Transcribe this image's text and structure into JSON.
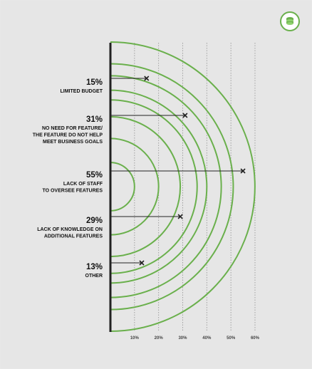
{
  "brand": {
    "logo_icon": "coins-stack-icon",
    "accent": "#6ab04c"
  },
  "chart_data": {
    "type": "radial-bar",
    "xlim": [
      0,
      60
    ],
    "ticks": [
      10,
      20,
      30,
      40,
      50,
      60
    ],
    "tick_labels": [
      "10%",
      "20%",
      "30%",
      "40%",
      "50%",
      "60%"
    ],
    "grid": true,
    "categories": [
      {
        "pct_label": "15%",
        "label": [
          "LIMITED BUDGET"
        ],
        "value": 15
      },
      {
        "pct_label": "31%",
        "label": [
          "NO NEED FOR FEATURE/",
          "THE FEATURE DO NOT HELP",
          "MEET BUSINESS GOALS"
        ],
        "value": 31
      },
      {
        "pct_label": "55%",
        "label": [
          "LACK OF STAFF",
          "TO OVERSEE FEATURES"
        ],
        "value": 55
      },
      {
        "pct_label": "29%",
        "label": [
          "LACK OF KNOWLEDGE ON",
          "ADDITIONAL FEATURES"
        ],
        "value": 29
      },
      {
        "pct_label": "13%",
        "label": [
          "OTHER"
        ],
        "value": 13
      }
    ],
    "arc_radii_pct": [
      10,
      20,
      29,
      36,
      40,
      46,
      51,
      60
    ],
    "colors": {
      "arc": "#6ab04c",
      "axis": "#222222",
      "grid": "#9a9a9a",
      "text": "#111111"
    }
  }
}
